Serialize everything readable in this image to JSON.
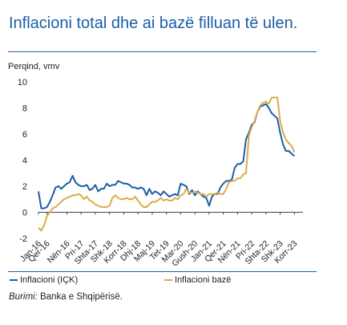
{
  "title": "Inflacioni total dhe ai bazë filluan të ulen.",
  "source_label": "Burimi:",
  "source_text": " Banka e Shqipërisë.",
  "colors": {
    "title": "#1b5ea8",
    "series_total": "#1b5ea8",
    "series_core": "#d9ad4a",
    "axis": "#333333"
  },
  "chart_data": {
    "type": "line",
    "ylabel": "Perqind, vmv",
    "ylim": [
      -2,
      10
    ],
    "yticks": [
      -2,
      0,
      2,
      4,
      6,
      8,
      10
    ],
    "grid": false,
    "legend_position": "bottom-left",
    "xlim": [
      "2016-01",
      "2023-10"
    ],
    "xticks": [
      {
        "date": "2016-01",
        "label": "Jan-16"
      },
      {
        "date": "2016-04",
        "label": "Qer-16"
      },
      {
        "date": "2016-11",
        "label": "Nën-16"
      },
      {
        "date": "2017-04",
        "label": "Pri-17"
      },
      {
        "date": "2017-09",
        "label": "Shta-17"
      },
      {
        "date": "2018-02",
        "label": "Shk-18"
      },
      {
        "date": "2018-07",
        "label": "Korr-18"
      },
      {
        "date": "2018-12",
        "label": "Dhj-18"
      },
      {
        "date": "2019-05",
        "label": "Maj-19"
      },
      {
        "date": "2019-10",
        "label": "Tet-19"
      },
      {
        "date": "2020-03",
        "label": "Mar-20"
      },
      {
        "date": "2020-08",
        "label": "Gush-20"
      },
      {
        "date": "2021-01",
        "label": "Jan-21"
      },
      {
        "date": "2021-06",
        "label": "Qer-21"
      },
      {
        "date": "2021-11",
        "label": "Nën-21"
      },
      {
        "date": "2022-04",
        "label": "Pri-22"
      },
      {
        "date": "2022-09",
        "label": "Shta-22"
      },
      {
        "date": "2023-02",
        "label": "Shk-23"
      },
      {
        "date": "2023-07",
        "label": "Korr-23"
      }
    ],
    "series": [
      {
        "name": "Inflacioni (IÇK)",
        "color": "#1b5ea8",
        "points": [
          [
            "2016-01",
            1.6
          ],
          [
            "2016-02",
            0.3
          ],
          [
            "2016-03",
            0.3
          ],
          [
            "2016-04",
            0.4
          ],
          [
            "2016-05",
            0.8
          ],
          [
            "2016-06",
            1.3
          ],
          [
            "2016-07",
            1.9
          ],
          [
            "2016-08",
            2.0
          ],
          [
            "2016-09",
            1.8
          ],
          [
            "2016-10",
            2.0
          ],
          [
            "2016-11",
            2.2
          ],
          [
            "2016-12",
            2.3
          ],
          [
            "2017-01",
            2.8
          ],
          [
            "2017-02",
            2.3
          ],
          [
            "2017-03",
            2.1
          ],
          [
            "2017-04",
            2.0
          ],
          [
            "2017-05",
            2.0
          ],
          [
            "2017-06",
            2.1
          ],
          [
            "2017-07",
            1.7
          ],
          [
            "2017-08",
            1.8
          ],
          [
            "2017-09",
            2.1
          ],
          [
            "2017-10",
            1.6
          ],
          [
            "2017-11",
            1.8
          ],
          [
            "2017-12",
            1.8
          ],
          [
            "2018-01",
            2.2
          ],
          [
            "2018-02",
            2.0
          ],
          [
            "2018-03",
            2.1
          ],
          [
            "2018-04",
            2.1
          ],
          [
            "2018-05",
            2.4
          ],
          [
            "2018-06",
            2.3
          ],
          [
            "2018-07",
            2.2
          ],
          [
            "2018-08",
            2.2
          ],
          [
            "2018-09",
            2.1
          ],
          [
            "2018-10",
            1.9
          ],
          [
            "2018-11",
            1.9
          ],
          [
            "2018-12",
            1.8
          ],
          [
            "2019-01",
            1.9
          ],
          [
            "2019-02",
            1.8
          ],
          [
            "2019-03",
            1.3
          ],
          [
            "2019-04",
            1.8
          ],
          [
            "2019-05",
            1.4
          ],
          [
            "2019-06",
            1.6
          ],
          [
            "2019-07",
            1.5
          ],
          [
            "2019-08",
            1.3
          ],
          [
            "2019-09",
            1.6
          ],
          [
            "2019-10",
            1.4
          ],
          [
            "2019-11",
            1.2
          ],
          [
            "2019-12",
            1.3
          ],
          [
            "2020-01",
            1.4
          ],
          [
            "2020-02",
            1.3
          ],
          [
            "2020-03",
            2.2
          ],
          [
            "2020-04",
            2.1
          ],
          [
            "2020-05",
            2.0
          ],
          [
            "2020-06",
            1.4
          ],
          [
            "2020-07",
            1.7
          ],
          [
            "2020-08",
            1.3
          ],
          [
            "2020-09",
            1.6
          ],
          [
            "2020-10",
            1.4
          ],
          [
            "2020-11",
            1.2
          ],
          [
            "2020-12",
            1.1
          ],
          [
            "2021-01",
            0.5
          ],
          [
            "2021-02",
            1.2
          ],
          [
            "2021-03",
            1.4
          ],
          [
            "2021-04",
            1.4
          ],
          [
            "2021-05",
            1.9
          ],
          [
            "2021-06",
            2.2
          ],
          [
            "2021-07",
            2.4
          ],
          [
            "2021-08",
            2.4
          ],
          [
            "2021-09",
            2.5
          ],
          [
            "2021-10",
            3.4
          ],
          [
            "2021-11",
            3.7
          ],
          [
            "2021-12",
            3.7
          ],
          [
            "2022-01",
            3.9
          ],
          [
            "2022-02",
            5.6
          ],
          [
            "2022-03",
            6.1
          ],
          [
            "2022-04",
            6.7
          ],
          [
            "2022-05",
            6.9
          ],
          [
            "2022-06",
            7.7
          ],
          [
            "2022-07",
            8.1
          ],
          [
            "2022-08",
            8.2
          ],
          [
            "2022-09",
            8.3
          ],
          [
            "2022-10",
            8.0
          ],
          [
            "2022-11",
            7.6
          ],
          [
            "2022-12",
            7.4
          ],
          [
            "2023-01",
            7.2
          ],
          [
            "2023-02",
            6.1
          ],
          [
            "2023-03",
            5.2
          ],
          [
            "2023-04",
            4.7
          ],
          [
            "2023-05",
            4.7
          ],
          [
            "2023-06",
            4.5
          ],
          [
            "2023-07",
            4.3
          ]
        ]
      },
      {
        "name": "Inflacioni bazë",
        "color": "#d9ad4a",
        "points": [
          [
            "2016-01",
            -1.2
          ],
          [
            "2016-02",
            -1.4
          ],
          [
            "2016-03",
            -1.0
          ],
          [
            "2016-04",
            -0.3
          ],
          [
            "2016-05",
            0.0
          ],
          [
            "2016-06",
            0.3
          ],
          [
            "2016-07",
            0.4
          ],
          [
            "2016-08",
            0.6
          ],
          [
            "2016-09",
            0.8
          ],
          [
            "2016-10",
            1.0
          ],
          [
            "2016-11",
            1.1
          ],
          [
            "2016-12",
            1.2
          ],
          [
            "2017-01",
            1.3
          ],
          [
            "2017-02",
            1.3
          ],
          [
            "2017-03",
            1.4
          ],
          [
            "2017-04",
            1.3
          ],
          [
            "2017-05",
            1.0
          ],
          [
            "2017-06",
            1.2
          ],
          [
            "2017-07",
            0.9
          ],
          [
            "2017-08",
            0.8
          ],
          [
            "2017-09",
            0.6
          ],
          [
            "2017-10",
            0.5
          ],
          [
            "2017-11",
            0.4
          ],
          [
            "2017-12",
            0.4
          ],
          [
            "2018-01",
            0.4
          ],
          [
            "2018-02",
            0.5
          ],
          [
            "2018-03",
            1.1
          ],
          [
            "2018-04",
            1.3
          ],
          [
            "2018-05",
            1.1
          ],
          [
            "2018-06",
            1.0
          ],
          [
            "2018-07",
            1.0
          ],
          [
            "2018-08",
            1.1
          ],
          [
            "2018-09",
            1.0
          ],
          [
            "2018-10",
            1.0
          ],
          [
            "2018-11",
            1.2
          ],
          [
            "2018-12",
            0.9
          ],
          [
            "2019-01",
            0.6
          ],
          [
            "2019-02",
            0.4
          ],
          [
            "2019-03",
            0.4
          ],
          [
            "2019-04",
            0.6
          ],
          [
            "2019-05",
            0.8
          ],
          [
            "2019-06",
            0.8
          ],
          [
            "2019-07",
            0.9
          ],
          [
            "2019-08",
            1.1
          ],
          [
            "2019-09",
            0.9
          ],
          [
            "2019-10",
            1.0
          ],
          [
            "2019-11",
            0.9
          ],
          [
            "2019-12",
            0.9
          ],
          [
            "2020-01",
            1.1
          ],
          [
            "2020-02",
            1.0
          ],
          [
            "2020-03",
            1.3
          ],
          [
            "2020-04",
            1.4
          ],
          [
            "2020-05",
            1.8
          ],
          [
            "2020-06",
            1.5
          ],
          [
            "2020-07",
            1.5
          ],
          [
            "2020-08",
            1.6
          ],
          [
            "2020-09",
            1.5
          ],
          [
            "2020-10",
            1.4
          ],
          [
            "2020-11",
            1.4
          ],
          [
            "2020-12",
            1.2
          ],
          [
            "2021-01",
            1.4
          ],
          [
            "2021-02",
            1.4
          ],
          [
            "2021-03",
            1.4
          ],
          [
            "2021-04",
            1.5
          ],
          [
            "2021-05",
            1.4
          ],
          [
            "2021-06",
            1.4
          ],
          [
            "2021-07",
            1.8
          ],
          [
            "2021-08",
            2.3
          ],
          [
            "2021-09",
            2.4
          ],
          [
            "2021-10",
            2.4
          ],
          [
            "2021-11",
            2.6
          ],
          [
            "2021-12",
            2.6
          ],
          [
            "2022-01",
            2.9
          ],
          [
            "2022-02",
            3.0
          ],
          [
            "2022-03",
            5.9
          ],
          [
            "2022-04",
            6.5
          ],
          [
            "2022-05",
            7.0
          ],
          [
            "2022-06",
            7.7
          ],
          [
            "2022-07",
            8.2
          ],
          [
            "2022-08",
            8.4
          ],
          [
            "2022-09",
            8.5
          ],
          [
            "2022-10",
            8.3
          ],
          [
            "2022-11",
            8.8
          ],
          [
            "2022-12",
            8.8
          ],
          [
            "2023-01",
            8.8
          ],
          [
            "2023-02",
            7.0
          ],
          [
            "2023-03",
            6.1
          ],
          [
            "2023-04",
            5.6
          ],
          [
            "2023-05",
            5.3
          ],
          [
            "2023-06",
            5.1
          ],
          [
            "2023-07",
            4.6
          ]
        ]
      }
    ]
  }
}
